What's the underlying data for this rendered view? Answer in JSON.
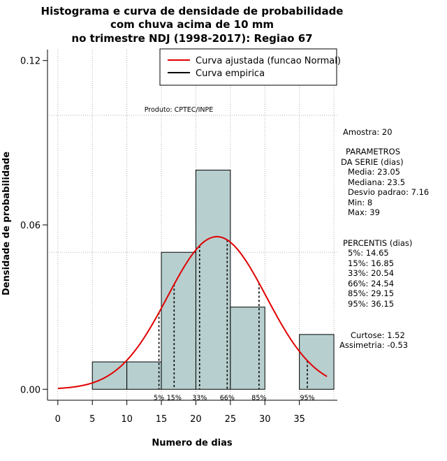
{
  "chart_data": {
    "type": "bar",
    "title_lines": [
      "Histograma e curva de densidade de probabilidade",
      "com chuva acima de 10 mm",
      "no trimestre NDJ (1998-2017): Regiao 67"
    ],
    "xlabel": "Numero de dias",
    "ylabel": "Densidade de probabilidade",
    "xlim": [
      -1.5,
      40.5
    ],
    "ylim": [
      -0.004,
      0.124
    ],
    "x_ticks": [
      0,
      5,
      10,
      15,
      20,
      25,
      30,
      35
    ],
    "y_ticks": [
      0.0,
      0.06,
      0.12
    ],
    "y_tick_labels": [
      "0.00",
      "0.06",
      "0.12"
    ],
    "bins": [
      {
        "start": 5,
        "end": 10,
        "density": 0.01
      },
      {
        "start": 10,
        "end": 15,
        "density": 0.01
      },
      {
        "start": 15,
        "end": 20,
        "density": 0.05
      },
      {
        "start": 20,
        "end": 25,
        "density": 0.08
      },
      {
        "start": 25,
        "end": 30,
        "density": 0.03
      },
      {
        "start": 30,
        "end": 35,
        "density": 0.0
      },
      {
        "start": 35,
        "end": 40,
        "density": 0.02
      }
    ],
    "grid_x": [
      0,
      5,
      10,
      15,
      20,
      25,
      30,
      35,
      40
    ],
    "grid_y": [
      0.1,
      0.05
    ],
    "normal_curve": {
      "mean": 23.05,
      "sd": 7.16,
      "x_from": 0,
      "x_to": 39,
      "color": "#e00000"
    },
    "percentiles": [
      {
        "label": "5%",
        "value": 14.65
      },
      {
        "label": "15%",
        "value": 16.85
      },
      {
        "label": "33%",
        "value": 20.54
      },
      {
        "label": "66%",
        "value": 24.54
      },
      {
        "label": "85%",
        "value": 29.15
      },
      {
        "label": "95%",
        "value": 36.15
      }
    ],
    "legend": [
      {
        "label": "Curva ajustada (funcao Normal)",
        "color": "#e00000"
      },
      {
        "label": "Curva empirica",
        "color": "#000000"
      }
    ],
    "colors": {
      "bar_fill": "#b7cfcf",
      "grid": "#b0b0b0"
    },
    "product_label": "Produto: CPTEC/INPE",
    "side_panel": {
      "amostra": "Amostra: 20",
      "param_title": "PARAMETROS",
      "param_sub": "DA SERIE (dias)",
      "media": "Media: 23.05",
      "mediana": "Mediana: 23.5",
      "desvio": "Desvio padrao: 7.16",
      "min": "Min: 8",
      "max": "Max: 39",
      "percentis_title": "PERCENTIS (dias)",
      "p5": "5%: 14.65",
      "p15": "15%: 16.85",
      "p33": "33%: 20.54",
      "p66": "66%: 24.54",
      "p85": "85%: 29.15",
      "p95": "95%: 36.15",
      "curtose": "Curtose: 1.52",
      "assimetria": "Assimetria: -0.53"
    }
  }
}
